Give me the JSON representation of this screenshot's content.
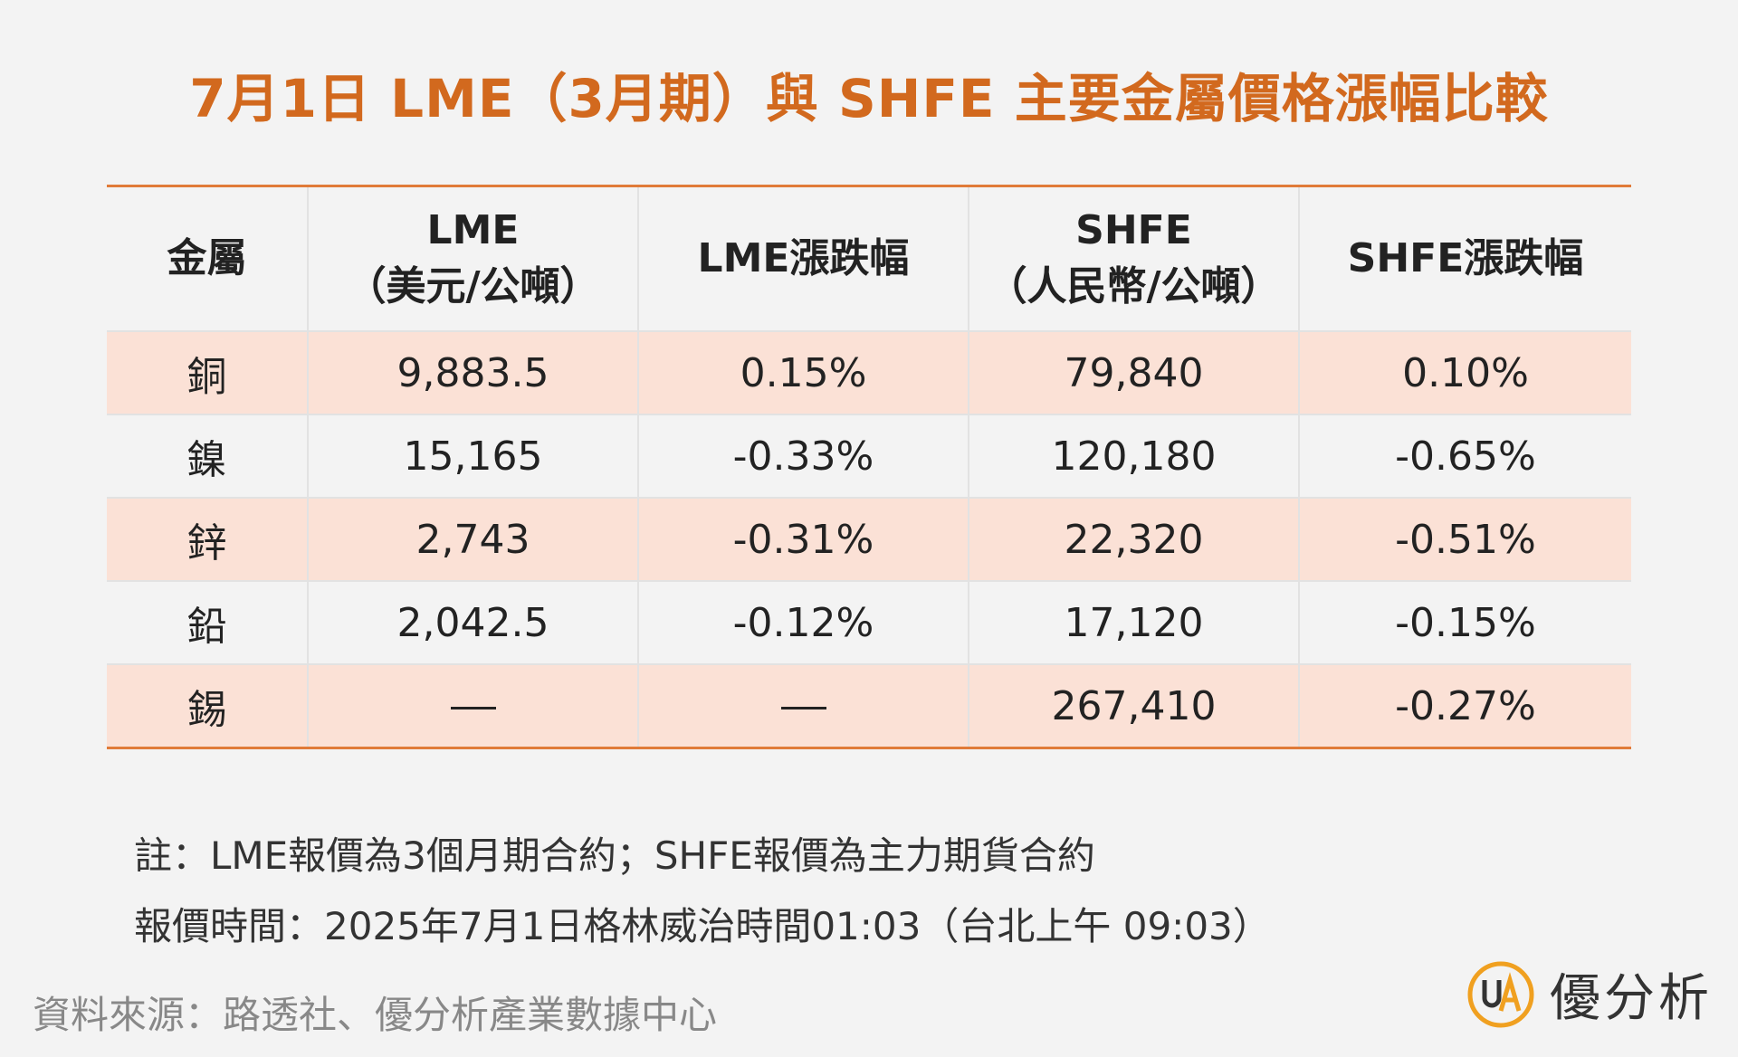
{
  "title": "7月1日 LME（3月期）與 SHFE 主要金屬價格漲幅比較",
  "table": {
    "headers": {
      "metal": "金屬",
      "lme_line1": "LME",
      "lme_line2": "（美元/公噸）",
      "lme_change": "LME漲跌幅",
      "shfe_line1": "SHFE",
      "shfe_line2": "（人民幣/公噸）",
      "shfe_change": "SHFE漲跌幅"
    },
    "rows": [
      {
        "metal": "銅",
        "lme": "9,883.5",
        "lme_change": "0.15%",
        "shfe": "79,840",
        "shfe_change": "0.10%"
      },
      {
        "metal": "鎳",
        "lme": "15,165",
        "lme_change": "-0.33%",
        "shfe": "120,180",
        "shfe_change": "-0.65%"
      },
      {
        "metal": "鋅",
        "lme": "2,743",
        "lme_change": "-0.31%",
        "shfe": "22,320",
        "shfe_change": "-0.51%"
      },
      {
        "metal": "鉛",
        "lme": "2,042.5",
        "lme_change": "-0.12%",
        "shfe": "17,120",
        "shfe_change": "-0.15%"
      },
      {
        "metal": "錫",
        "lme": null,
        "lme_change": null,
        "shfe": "267,410",
        "shfe_change": "-0.27%"
      }
    ]
  },
  "notes": {
    "note1": "註：LME報價為3個月期合約；SHFE報價為主力期貨合約",
    "note2": "報價時間：2025年7月1日格林威治時間01:03（台北上午 09:03）"
  },
  "source": "資料來源：路透社、優分析產業數據中心",
  "brand": {
    "logo_text": "UA",
    "name": "優分析"
  },
  "colors": {
    "title": "#d2691e",
    "accent_line": "#e07b39",
    "row_highlight": "#fbe1d6",
    "logo_ring": "#f0a020"
  },
  "chart_data": {
    "type": "table",
    "title": "7月1日 LME（3月期）與 SHFE 主要金屬價格漲幅比較",
    "columns": [
      "金屬",
      "LME（美元/公噸）",
      "LME漲跌幅",
      "SHFE（人民幣/公噸）",
      "SHFE漲跌幅"
    ],
    "rows": [
      [
        "銅",
        9883.5,
        0.15,
        79840,
        0.1
      ],
      [
        "鎳",
        15165,
        -0.33,
        120180,
        -0.65
      ],
      [
        "鋅",
        2743,
        -0.31,
        22320,
        -0.51
      ],
      [
        "鉛",
        2042.5,
        -0.12,
        17120,
        -0.15
      ],
      [
        "錫",
        null,
        null,
        267410,
        -0.27
      ]
    ]
  }
}
